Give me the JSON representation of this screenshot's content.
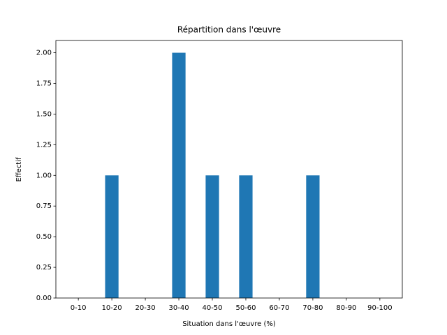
{
  "chart_data": {
    "type": "bar",
    "title": "Répartition dans l'œuvre",
    "x_label": "Situation dans l'œuvre (%)",
    "y_label": "Effectif",
    "categories": [
      "0-10",
      "10-20",
      "20-30",
      "30-40",
      "40-50",
      "50-60",
      "60-70",
      "70-80",
      "80-90",
      "90-100"
    ],
    "values": [
      0,
      1,
      0,
      2,
      1,
      1,
      0,
      1,
      0,
      0
    ],
    "color": "#1f77b4",
    "ylim": [
      0,
      2.1
    ],
    "yticks": [
      {
        "value": 0,
        "label": "0.00"
      },
      {
        "value": 0.25,
        "label": "0.25"
      },
      {
        "value": 0.5,
        "label": "0.50"
      },
      {
        "value": 0.75,
        "label": "0.75"
      },
      {
        "value": 1,
        "label": "1.00"
      },
      {
        "value": 1.25,
        "label": "1.25"
      },
      {
        "value": 1.5,
        "label": "1.50"
      },
      {
        "value": 1.75,
        "label": "1.75"
      },
      {
        "value": 2,
        "label": "2.00"
      }
    ],
    "grid": false
  }
}
